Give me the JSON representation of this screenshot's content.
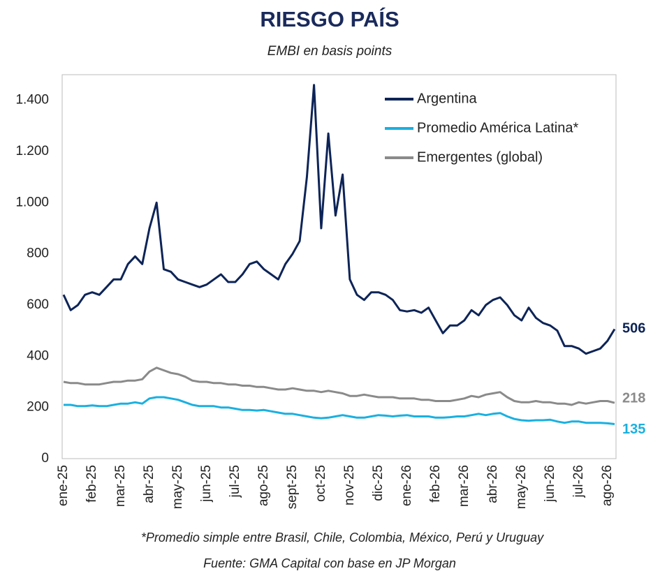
{
  "chart_data": {
    "type": "line",
    "title": "RIESGO PAÍS",
    "subtitle": "EMBI en basis points",
    "note": "*Promedio simple entre Brasil, Chile, Colombia, México, Perú y Uruguay",
    "source": "Fuente: GMA Capital con base en JP Morgan",
    "categories": [
      "ene-25",
      null,
      null,
      null,
      "feb-25",
      null,
      null,
      null,
      "mar-25",
      null,
      null,
      null,
      "abr-25",
      null,
      null,
      null,
      "may-25",
      null,
      null,
      null,
      "jun-25",
      null,
      null,
      null,
      "jul-25",
      null,
      null,
      null,
      "ago-25",
      null,
      null,
      null,
      "sept-25",
      null,
      null,
      null,
      "oct-25",
      null,
      null,
      null,
      "nov-25",
      null,
      null,
      null,
      "dic-25",
      null,
      null,
      null,
      "ene-26",
      null,
      null,
      null,
      "feb-26",
      null,
      null,
      null,
      "mar-26",
      null,
      null,
      null,
      "abr-26",
      null,
      null,
      null,
      "may-26",
      null,
      null,
      null,
      "jun-26",
      null,
      null,
      null,
      "jul-26",
      null,
      null,
      null,
      "ago-26",
      null
    ],
    "series": [
      {
        "name": "Argentina",
        "color": "#0d2457",
        "values": [
          640,
          580,
          600,
          640,
          650,
          640,
          670,
          700,
          700,
          760,
          790,
          760,
          900,
          1000,
          740,
          730,
          700,
          690,
          680,
          670,
          680,
          700,
          720,
          690,
          690,
          720,
          760,
          770,
          740,
          720,
          700,
          760,
          800,
          850,
          1100,
          1460,
          900,
          1270,
          950,
          1110,
          700,
          640,
          620,
          650,
          650,
          640,
          620,
          580,
          575,
          580,
          570,
          590,
          540,
          490,
          520,
          520,
          540,
          580,
          560,
          600,
          620,
          630,
          600,
          560,
          540,
          590,
          550,
          530,
          520,
          500,
          440,
          440,
          430,
          410,
          420,
          430,
          460,
          506
        ]
      },
      {
        "name": "Promedio América Latina*",
        "color": "#1ab0e0",
        "values": [
          210,
          210,
          205,
          205,
          208,
          205,
          205,
          210,
          215,
          215,
          220,
          215,
          235,
          240,
          240,
          235,
          230,
          220,
          210,
          205,
          205,
          205,
          200,
          200,
          195,
          190,
          190,
          188,
          190,
          185,
          180,
          175,
          175,
          170,
          165,
          160,
          158,
          160,
          165,
          170,
          165,
          160,
          160,
          165,
          170,
          168,
          165,
          168,
          170,
          165,
          165,
          165,
          160,
          160,
          162,
          165,
          165,
          170,
          175,
          170,
          175,
          178,
          165,
          155,
          150,
          148,
          150,
          150,
          152,
          145,
          140,
          145,
          145,
          140,
          140,
          140,
          138,
          135
        ]
      },
      {
        "name": "Emergentes (global)",
        "color": "#8a8a8a",
        "values": [
          300,
          295,
          295,
          290,
          290,
          290,
          295,
          300,
          300,
          305,
          305,
          310,
          340,
          355,
          345,
          335,
          330,
          320,
          305,
          300,
          300,
          295,
          295,
          290,
          290,
          285,
          285,
          280,
          280,
          275,
          270,
          270,
          275,
          270,
          265,
          265,
          260,
          265,
          260,
          255,
          245,
          245,
          250,
          245,
          240,
          240,
          240,
          235,
          235,
          235,
          230,
          230,
          225,
          225,
          225,
          230,
          235,
          245,
          240,
          250,
          255,
          260,
          240,
          225,
          220,
          220,
          225,
          220,
          220,
          215,
          215,
          210,
          220,
          215,
          220,
          225,
          225,
          218
        ]
      }
    ],
    "ylim": [
      0,
      1500
    ],
    "yticks": [
      0,
      200,
      400,
      600,
      800,
      {
        "value": 1000,
        "label": "1.000"
      },
      {
        "value": 1200,
        "label": "1.200"
      },
      {
        "value": 1400,
        "label": "1.400"
      }
    ],
    "legend": "top-right"
  }
}
